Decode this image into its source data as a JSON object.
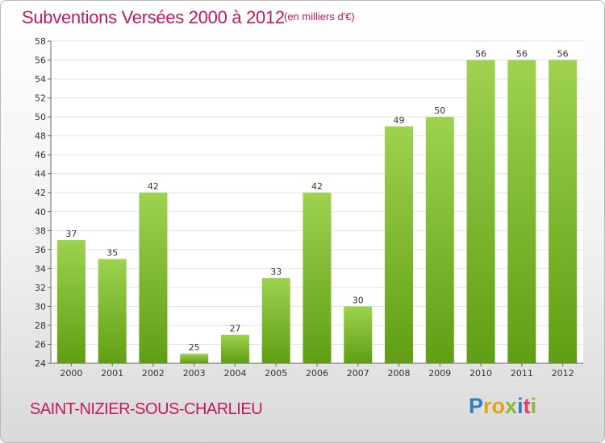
{
  "header": {
    "title": "Subventions Versées 2000 à 2012",
    "subtitle": "(en milliers d'€)"
  },
  "footer": {
    "commune": "SAINT-NIZIER-SOUS-CHARLIEU",
    "logo_text": "Proxiti"
  },
  "colors": {
    "title": "#c4175d",
    "bar_light": "#9ed24f",
    "bar_dark": "#5f9e14",
    "grid": "#e3e3e3"
  },
  "chart_data": {
    "type": "bar",
    "title": "Subventions Versées 2000 à 2012",
    "subtitle": "(en milliers d'€)",
    "xlabel": "",
    "ylabel": "",
    "categories": [
      "2000",
      "2001",
      "2002",
      "2003",
      "2004",
      "2005",
      "2006",
      "2007",
      "2008",
      "2009",
      "2010",
      "2011",
      "2012"
    ],
    "values": [
      37,
      35,
      42,
      25,
      27,
      33,
      42,
      30,
      49,
      50,
      56,
      56,
      56
    ],
    "data_labels": [
      "37",
      "35",
      "42",
      "25",
      "27",
      "33",
      "42",
      "30",
      "49",
      "50",
      "56",
      "56",
      "56"
    ],
    "ylim": [
      24,
      58
    ],
    "yticks": [
      24,
      26,
      28,
      30,
      32,
      34,
      36,
      38,
      40,
      42,
      44,
      46,
      48,
      50,
      52,
      54,
      56,
      58
    ],
    "grid": true,
    "legend": "none"
  }
}
